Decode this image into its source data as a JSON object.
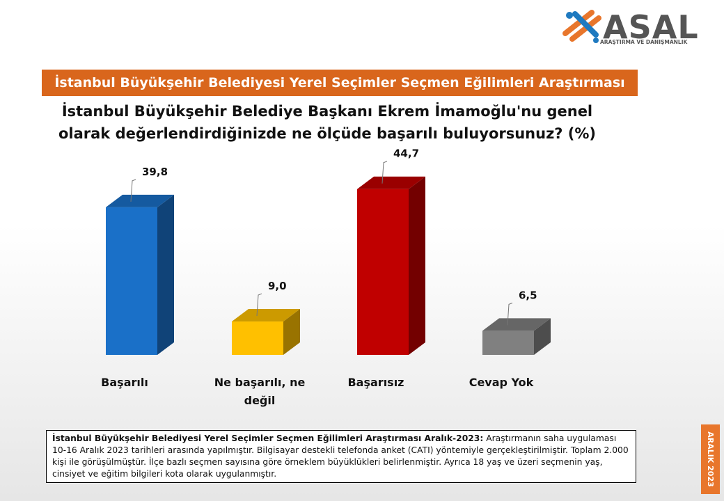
{
  "chart_data": {
    "type": "bar3d",
    "brand": "ASAL",
    "brand_subtitle": "ARAŞTIRMA VE DANIŞMANLIK",
    "title": "İstanbul Büyükşehir Belediyesi Yerel Seçimler Seçmen Eğilimleri Araştırması",
    "subtitle": "İstanbul Büyükşehir Belediye Başkanı Ekrem İmamoğlu'nu genel olarak değerlendirdiğinizde ne ölçüde başarılı buluyorsunuz? (%)",
    "categories": [
      "Başarılı",
      "Ne başarılı, ne değil",
      "Başarısız",
      "Cevap Yok"
    ],
    "values": [
      39.8,
      9.0,
      44.7,
      6.5
    ],
    "value_labels": [
      "39,8",
      "9,0",
      "44,7",
      "6,5"
    ],
    "colors": [
      "#1a70c8",
      "#ffc000",
      "#c00000",
      "#808080"
    ],
    "note_title": "İstanbul Büyükşehir Belediyesi Yerel Seçimler Seçmen Eğilimleri Araştırması Aralık-2023:",
    "note_text": "Araştırmanın saha uygulaması 10-16 Aralık 2023 tarihleri arasında yapılmıştır. Bilgisayar destekli telefonda anket (CATI) yöntemiyle gerçekleştirilmiştir. Toplam 2.000 kişi ile görüşülmüştür. İlçe bazlı seçmen sayısına göre örneklem büyüklükleri belirlenmiştir. Ayrıca 18 yaş ve üzeri seçmenin yaş, cinsiyet ve eğitim bilgileri kota olarak uygulanmıştır.",
    "date_tab": "ARALIK 2023"
  }
}
